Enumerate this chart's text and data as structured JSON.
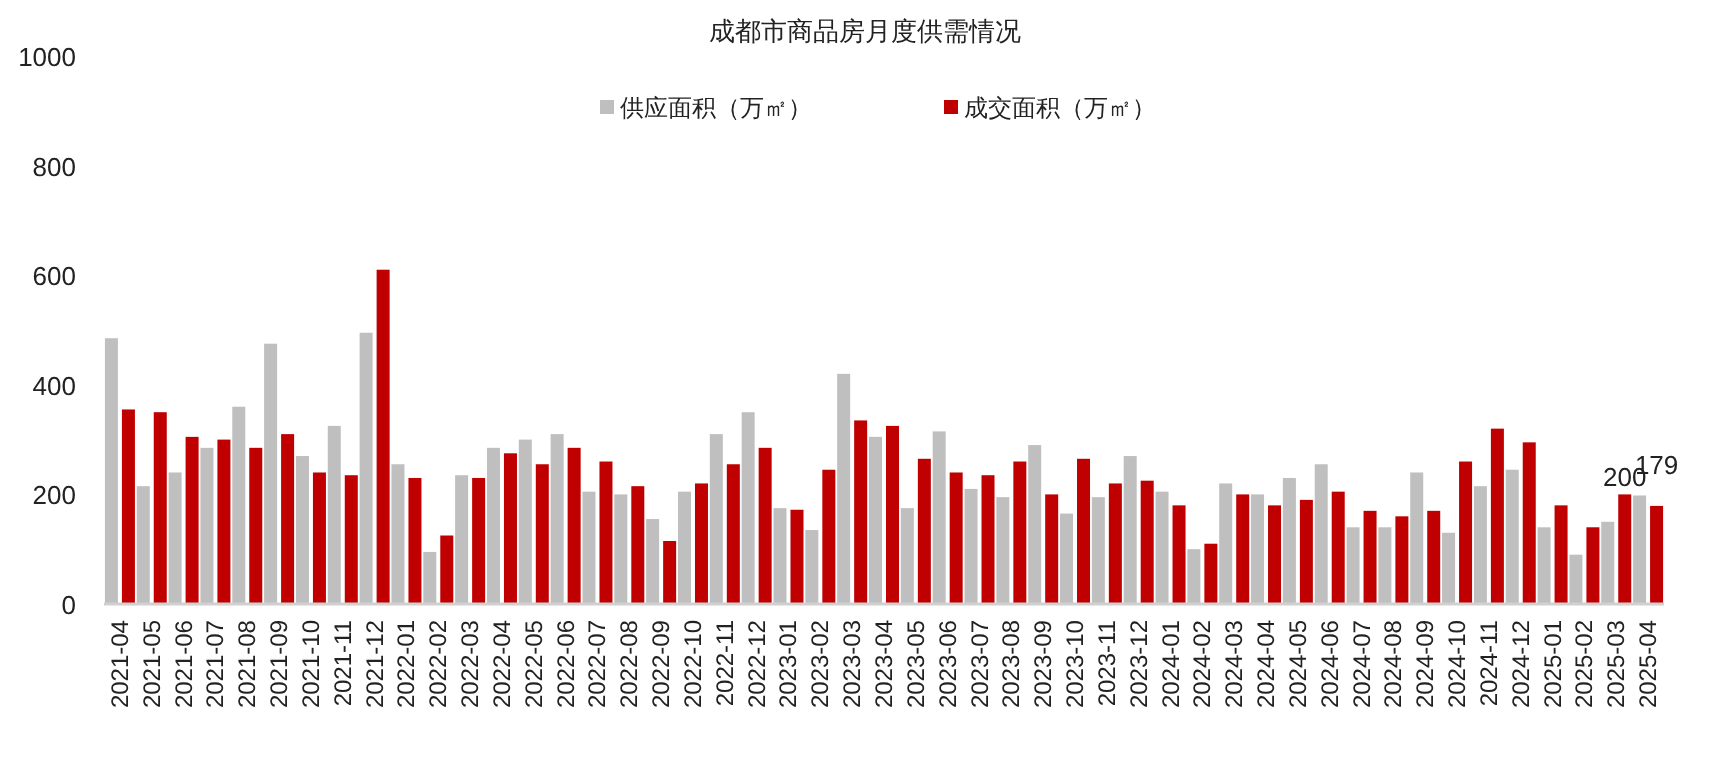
{
  "chart_data": {
    "type": "bar",
    "title": "成都市商品房月度供需情况",
    "categories": [
      "2021-04",
      "2021-05",
      "2021-06",
      "2021-07",
      "2021-08",
      "2021-09",
      "2021-10",
      "2021-11",
      "2021-12",
      "2022-01",
      "2022-02",
      "2022-03",
      "2022-04",
      "2022-05",
      "2022-06",
      "2022-07",
      "2022-08",
      "2022-09",
      "2022-10",
      "2022-11",
      "2022-12",
      "2023-01",
      "2023-02",
      "2023-03",
      "2023-04",
      "2023-05",
      "2023-06",
      "2023-07",
      "2023-08",
      "2023-09",
      "2023-10",
      "2023-11",
      "2023-12",
      "2024-01",
      "2024-02",
      "2024-03",
      "2024-04",
      "2024-05",
      "2024-06",
      "2024-07",
      "2024-08",
      "2024-09",
      "2024-10",
      "2024-11",
      "2024-12",
      "2025-01",
      "2025-02",
      "2025-03",
      "2025-04"
    ],
    "series": [
      {
        "name": "供应面积（万㎡）",
        "color": "#bfbfbf",
        "values": [
          485,
          215,
          240,
          285,
          360,
          475,
          270,
          325,
          495,
          255,
          95,
          235,
          285,
          300,
          310,
          205,
          200,
          155,
          205,
          310,
          350,
          175,
          135,
          420,
          305,
          175,
          315,
          210,
          195,
          290,
          165,
          195,
          270,
          205,
          100,
          220,
          200,
          230,
          255,
          140,
          140,
          240,
          130,
          215,
          245,
          140,
          90,
          150,
          198
        ]
      },
      {
        "name": "成交面积（万㎡）",
        "color": "#c00000",
        "values": [
          355,
          350,
          305,
          300,
          285,
          310,
          240,
          235,
          610,
          230,
          125,
          230,
          275,
          255,
          285,
          260,
          215,
          115,
          220,
          255,
          285,
          172,
          245,
          335,
          325,
          265,
          240,
          235,
          260,
          200,
          265,
          220,
          225,
          180,
          110,
          200,
          180,
          190,
          205,
          170,
          160,
          170,
          260,
          320,
          295,
          180,
          140,
          200,
          179
        ],
        "value_labels": [
          null,
          null,
          null,
          null,
          null,
          null,
          null,
          null,
          null,
          null,
          null,
          null,
          null,
          null,
          null,
          null,
          null,
          null,
          null,
          null,
          null,
          null,
          null,
          null,
          null,
          null,
          null,
          null,
          null,
          null,
          null,
          null,
          null,
          null,
          null,
          null,
          null,
          null,
          null,
          null,
          null,
          null,
          null,
          null,
          null,
          null,
          null,
          "200",
          "179"
        ]
      }
    ],
    "ylim": [
      0,
      1000
    ],
    "yticks": [
      0,
      200,
      400,
      600,
      800,
      1000
    ],
    "grid": false,
    "legend": "top"
  }
}
